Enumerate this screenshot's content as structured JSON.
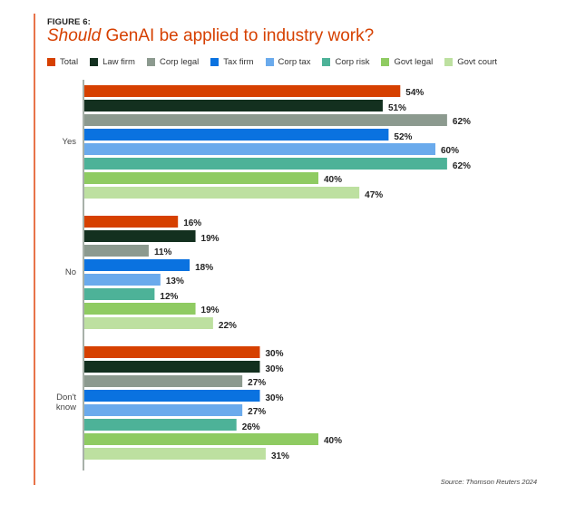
{
  "figure_label": "FIGURE 6:",
  "title_emphasis": "Should",
  "title_rest": " GenAI be applied to industry work?",
  "source": "Source: Thomson Reuters 2024",
  "chart_data": {
    "type": "bar",
    "orientation": "horizontal",
    "title": "Should GenAI be applied to industry work?",
    "xlabel": "",
    "ylabel": "",
    "xlim": [
      0,
      70
    ],
    "grid": false,
    "legend_position": "top",
    "categories": [
      "Yes",
      "No",
      "Don't know"
    ],
    "series": [
      {
        "name": "Total",
        "color": "#d64000",
        "values": [
          54,
          16,
          30
        ]
      },
      {
        "name": "Law firm",
        "color": "#13301f",
        "values": [
          51,
          19,
          30
        ]
      },
      {
        "name": "Corp legal",
        "color": "#8c9a8f",
        "values": [
          62,
          11,
          27
        ]
      },
      {
        "name": "Tax firm",
        "color": "#0a72e0",
        "values": [
          52,
          18,
          30
        ]
      },
      {
        "name": "Corp tax",
        "color": "#6aaaec",
        "values": [
          60,
          13,
          27
        ]
      },
      {
        "name": "Corp risk",
        "color": "#4db298",
        "values": [
          62,
          12,
          26
        ]
      },
      {
        "name": "Govt legal",
        "color": "#8fcb62",
        "values": [
          40,
          19,
          40
        ]
      },
      {
        "name": "Govt court",
        "color": "#bde0a0",
        "values": [
          47,
          22,
          31
        ]
      }
    ],
    "value_suffix": "%"
  }
}
